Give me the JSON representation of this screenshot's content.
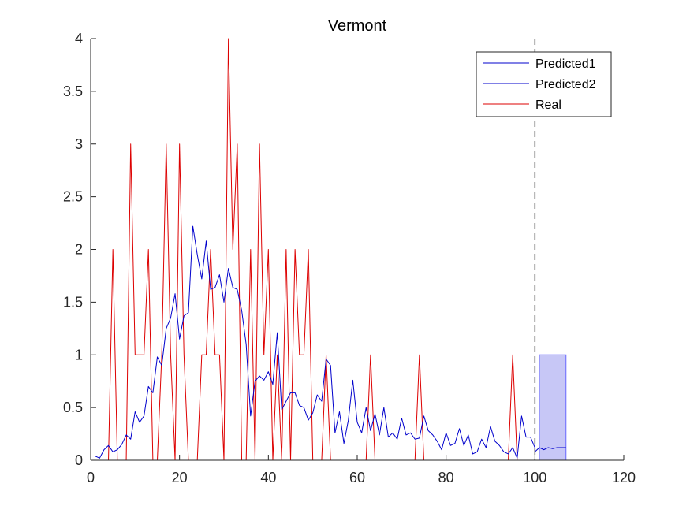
{
  "chart_data": {
    "type": "line",
    "title": "Vermont",
    "xlabel": "",
    "ylabel": "",
    "xlim": [
      0,
      120
    ],
    "ylim": [
      0,
      4
    ],
    "xticks": [
      0,
      20,
      40,
      60,
      80,
      100,
      120
    ],
    "yticks": [
      0,
      0.5,
      1,
      1.5,
      2,
      2.5,
      3,
      3.5,
      4
    ],
    "xtick_labels": [
      "0",
      "20",
      "40",
      "60",
      "80",
      "100",
      "120"
    ],
    "ytick_labels": [
      "0",
      "0.5",
      "1",
      "1.5",
      "2",
      "2.5",
      "3",
      "3.5",
      "4"
    ],
    "grid": false,
    "legend_position": "top-right",
    "vline": {
      "x": 100,
      "style": "dashed",
      "color": "#555555"
    },
    "band": {
      "x0": 101,
      "x1": 107,
      "y0": 0,
      "y1": 1,
      "color": "#9999ee",
      "opacity": 0.55
    },
    "series": [
      {
        "name": "Predicted1",
        "color": "#0000cc",
        "x": [
          1,
          2,
          3,
          4,
          5,
          6,
          7,
          8,
          9,
          10,
          11,
          12,
          13,
          14,
          15,
          16,
          17,
          18,
          19,
          20,
          21,
          22,
          23,
          24,
          25,
          26,
          27,
          28,
          29,
          30,
          31,
          32,
          33,
          34,
          35,
          36,
          37,
          38,
          39,
          40,
          41,
          42,
          43,
          44,
          45,
          46,
          47,
          48,
          49,
          50,
          51,
          52,
          53,
          54,
          55,
          56,
          57,
          58,
          59,
          60,
          61,
          62,
          63,
          64,
          65,
          66,
          67,
          68,
          69,
          70,
          71,
          72,
          73,
          74,
          75,
          76,
          77,
          78,
          79,
          80,
          81,
          82,
          83,
          84,
          85,
          86,
          87,
          88,
          89,
          90,
          91,
          92,
          93,
          94,
          95,
          96,
          97,
          98,
          99,
          100
        ],
        "values": [
          0.04,
          0.02,
          0.1,
          0.14,
          0.08,
          0.1,
          0.15,
          0.24,
          0.2,
          0.46,
          0.36,
          0.42,
          0.7,
          0.64,
          0.98,
          0.9,
          1.25,
          1.35,
          1.58,
          1.15,
          1.37,
          1.4,
          2.22,
          1.95,
          1.72,
          2.08,
          1.62,
          1.64,
          1.76,
          1.5,
          1.82,
          1.64,
          1.62,
          1.42,
          1.1,
          0.42,
          0.75,
          0.8,
          0.76,
          0.84,
          0.72,
          1.21,
          0.48,
          0.56,
          0.64,
          0.64,
          0.52,
          0.5,
          0.38,
          0.45,
          0.62,
          0.56,
          0.96,
          0.9,
          0.26,
          0.46,
          0.16,
          0.38,
          0.76,
          0.36,
          0.26,
          0.5,
          0.28,
          0.44,
          0.24,
          0.5,
          0.22,
          0.26,
          0.2,
          0.4,
          0.24,
          0.26,
          0.2,
          0.21,
          0.42,
          0.28,
          0.24,
          0.18,
          0.1,
          0.26,
          0.14,
          0.16,
          0.3,
          0.14,
          0.24,
          0.06,
          0.08,
          0.2,
          0.12,
          0.32,
          0.18,
          0.14,
          0.08,
          0.06,
          0.12,
          0.02,
          0.42,
          0.22,
          0.22,
          0.12
        ]
      },
      {
        "name": "Predicted2",
        "color": "#0000cc",
        "x": [
          100,
          101,
          102,
          103,
          104,
          105,
          106,
          107
        ],
        "values": [
          0.08,
          0.12,
          0.1,
          0.12,
          0.11,
          0.12,
          0.12,
          0.12
        ]
      },
      {
        "name": "Real",
        "color": "#dd0000",
        "x": [
          1,
          2,
          3,
          4,
          5,
          6,
          7,
          8,
          9,
          10,
          11,
          12,
          13,
          14,
          15,
          16,
          17,
          18,
          19,
          20,
          21,
          22,
          23,
          24,
          25,
          26,
          27,
          28,
          29,
          30,
          31,
          32,
          33,
          34,
          35,
          36,
          37,
          38,
          39,
          40,
          41,
          42,
          43,
          44,
          45,
          46,
          47,
          48,
          49,
          50,
          51,
          52,
          53,
          54,
          55,
          56,
          57,
          58,
          59,
          60,
          61,
          62,
          63,
          64,
          65,
          66,
          67,
          68,
          69,
          70,
          71,
          72,
          73,
          74,
          75,
          76,
          77,
          78,
          79,
          80,
          81,
          82,
          83,
          84,
          85,
          86,
          87,
          88,
          89,
          90,
          91,
          92,
          93,
          94,
          95,
          96,
          97,
          98,
          99,
          100,
          101,
          102,
          103,
          104,
          105,
          106,
          107
        ],
        "values": [
          0,
          0,
          0,
          0,
          2,
          0,
          0,
          0,
          3,
          1,
          1,
          1,
          2,
          0,
          0,
          1,
          3,
          1,
          0,
          3,
          1,
          0,
          0,
          0,
          1,
          1,
          2,
          1,
          1,
          0,
          4,
          2,
          3,
          0,
          0,
          2,
          0,
          3,
          1,
          2,
          0,
          1,
          0,
          2,
          0,
          2,
          1,
          1,
          2,
          0,
          0,
          0,
          1,
          0,
          0,
          0,
          0,
          0,
          0,
          0,
          0,
          0,
          1,
          0,
          0,
          0,
          0,
          0,
          0,
          0,
          0,
          0,
          0,
          1,
          0,
          0,
          0,
          0,
          0,
          0,
          0,
          0,
          0,
          0,
          0,
          0,
          0,
          0,
          0,
          0,
          0,
          0,
          0,
          0,
          1,
          0,
          0,
          0,
          0,
          0,
          0,
          0,
          0,
          0,
          0,
          0,
          0
        ]
      }
    ]
  }
}
